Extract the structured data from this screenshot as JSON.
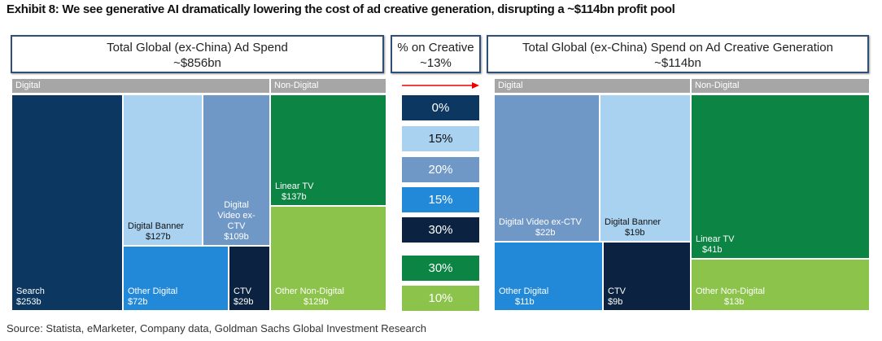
{
  "title": "Exhibit 8: We see generative AI dramatically lowering the cost of ad creative generation, disrupting a ~$114bn profit pool",
  "source": "Source: Statista, eMarketer, Company data, Goldman Sachs Global Investment Research",
  "chart_data": {
    "type": "treemap",
    "left": {
      "title": "Total Global (ex-China) Ad Spend",
      "total": "~$856bn",
      "groups": [
        "Digital",
        "Non-Digital"
      ],
      "items": [
        {
          "name": "Search",
          "value": "$253b"
        },
        {
          "name": "Digital Banner",
          "value": "$127b"
        },
        {
          "name": "Digital Video ex-CTV",
          "value": "$109b"
        },
        {
          "name": "Other Digital",
          "value": "$72b"
        },
        {
          "name": "CTV",
          "value": "$29b"
        },
        {
          "name": "Linear TV",
          "value": "$137b"
        },
        {
          "name": "Other Non-Digital",
          "value": "$129b"
        }
      ]
    },
    "middle": {
      "title": "% on Creative",
      "total": "~13%",
      "percents": [
        "0%",
        "15%",
        "20%",
        "15%",
        "30%",
        "30%",
        "10%"
      ]
    },
    "right": {
      "title": "Total Global (ex-China) Spend on Ad Creative Generation",
      "total": "~$114bn",
      "groups": [
        "Digital",
        "Non-Digital"
      ],
      "items": [
        {
          "name": "Digital Video ex-CTV",
          "value": "$22b"
        },
        {
          "name": "Digital Banner",
          "value": "$19b"
        },
        {
          "name": "Other Digital",
          "value": "$11b"
        },
        {
          "name": "CTV",
          "value": "$9b"
        },
        {
          "name": "Linear TV",
          "value": "$41b"
        },
        {
          "name": "Other Non-Digital",
          "value": "$13b"
        }
      ]
    }
  },
  "colors": {
    "search": "#0b3760",
    "banner": "#a9d1f0",
    "video": "#7098c7",
    "other_digital": "#2288d8",
    "ctv": "#0b2340",
    "linear_tv": "#0b8444",
    "other_non_digital": "#8cc34a"
  }
}
